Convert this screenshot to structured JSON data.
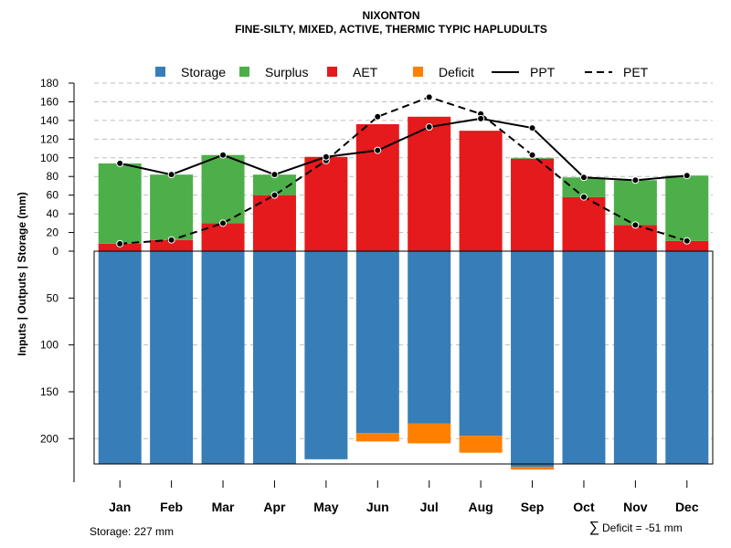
{
  "chart_data": {
    "type": "bar",
    "title": "NIXONTON",
    "subtitle": "FINE-SILTY, MIXED, ACTIVE, THERMIC TYPIC HAPLUDULTS",
    "ylabel": "Inputs | Outputs | Storage    (mm)",
    "categories": [
      "Jan",
      "Feb",
      "Mar",
      "Apr",
      "May",
      "Jun",
      "Jul",
      "Aug",
      "Sep",
      "Oct",
      "Nov",
      "Dec"
    ],
    "upper_ticks": [
      0,
      20,
      40,
      60,
      80,
      100,
      120,
      140,
      160,
      180
    ],
    "lower_ticks": [
      50,
      100,
      150,
      200
    ],
    "ylim_upper": [
      0,
      180
    ],
    "ylim_lower": [
      0,
      227
    ],
    "series": [
      {
        "name": "AET",
        "values": [
          8,
          12,
          30,
          60,
          101,
          136,
          144,
          129,
          99,
          58,
          28,
          11
        ]
      },
      {
        "name": "Surplus",
        "values": [
          86,
          70,
          73,
          22,
          0,
          0,
          0,
          0,
          1,
          21,
          48,
          70
        ]
      },
      {
        "name": "Storage",
        "values": [
          227,
          227,
          227,
          227,
          222,
          194,
          184,
          197,
          230,
          227,
          227,
          227
        ]
      },
      {
        "name": "Deficit",
        "values": [
          0,
          0,
          0,
          0,
          0,
          9,
          21,
          18,
          3,
          0,
          0,
          0
        ]
      },
      {
        "name": "PPT",
        "values": [
          94,
          82,
          103,
          82,
          101,
          108,
          133,
          142,
          132,
          79,
          76,
          81
        ]
      },
      {
        "name": "PET",
        "values": [
          8,
          12,
          30,
          60,
          97,
          144,
          165,
          147,
          103,
          58,
          28,
          11
        ]
      }
    ],
    "legend": [
      {
        "name": "Storage",
        "kind": "square",
        "color": "#377EB8"
      },
      {
        "name": "Surplus",
        "kind": "square",
        "color": "#4DAF4A"
      },
      {
        "name": "AET",
        "kind": "square",
        "color": "#E41A1C"
      },
      {
        "name": "Deficit",
        "kind": "square",
        "color": "#FF7F00"
      },
      {
        "name": "PPT",
        "kind": "solid-line",
        "color": "#000000"
      },
      {
        "name": "PET",
        "kind": "dashed-line",
        "color": "#000000"
      }
    ],
    "legend_position": "top",
    "grid": true,
    "colors": {
      "storage": "#377EB8",
      "surplus": "#4DAF4A",
      "aet": "#E41A1C",
      "deficit": "#FF7F00",
      "line": "#000000",
      "grid": "#BEBEBE"
    }
  },
  "footer": {
    "storage_label": "Storage: 227 mm",
    "deficit_symbol": "∑",
    "deficit_label": "Deficit = -51 mm"
  }
}
